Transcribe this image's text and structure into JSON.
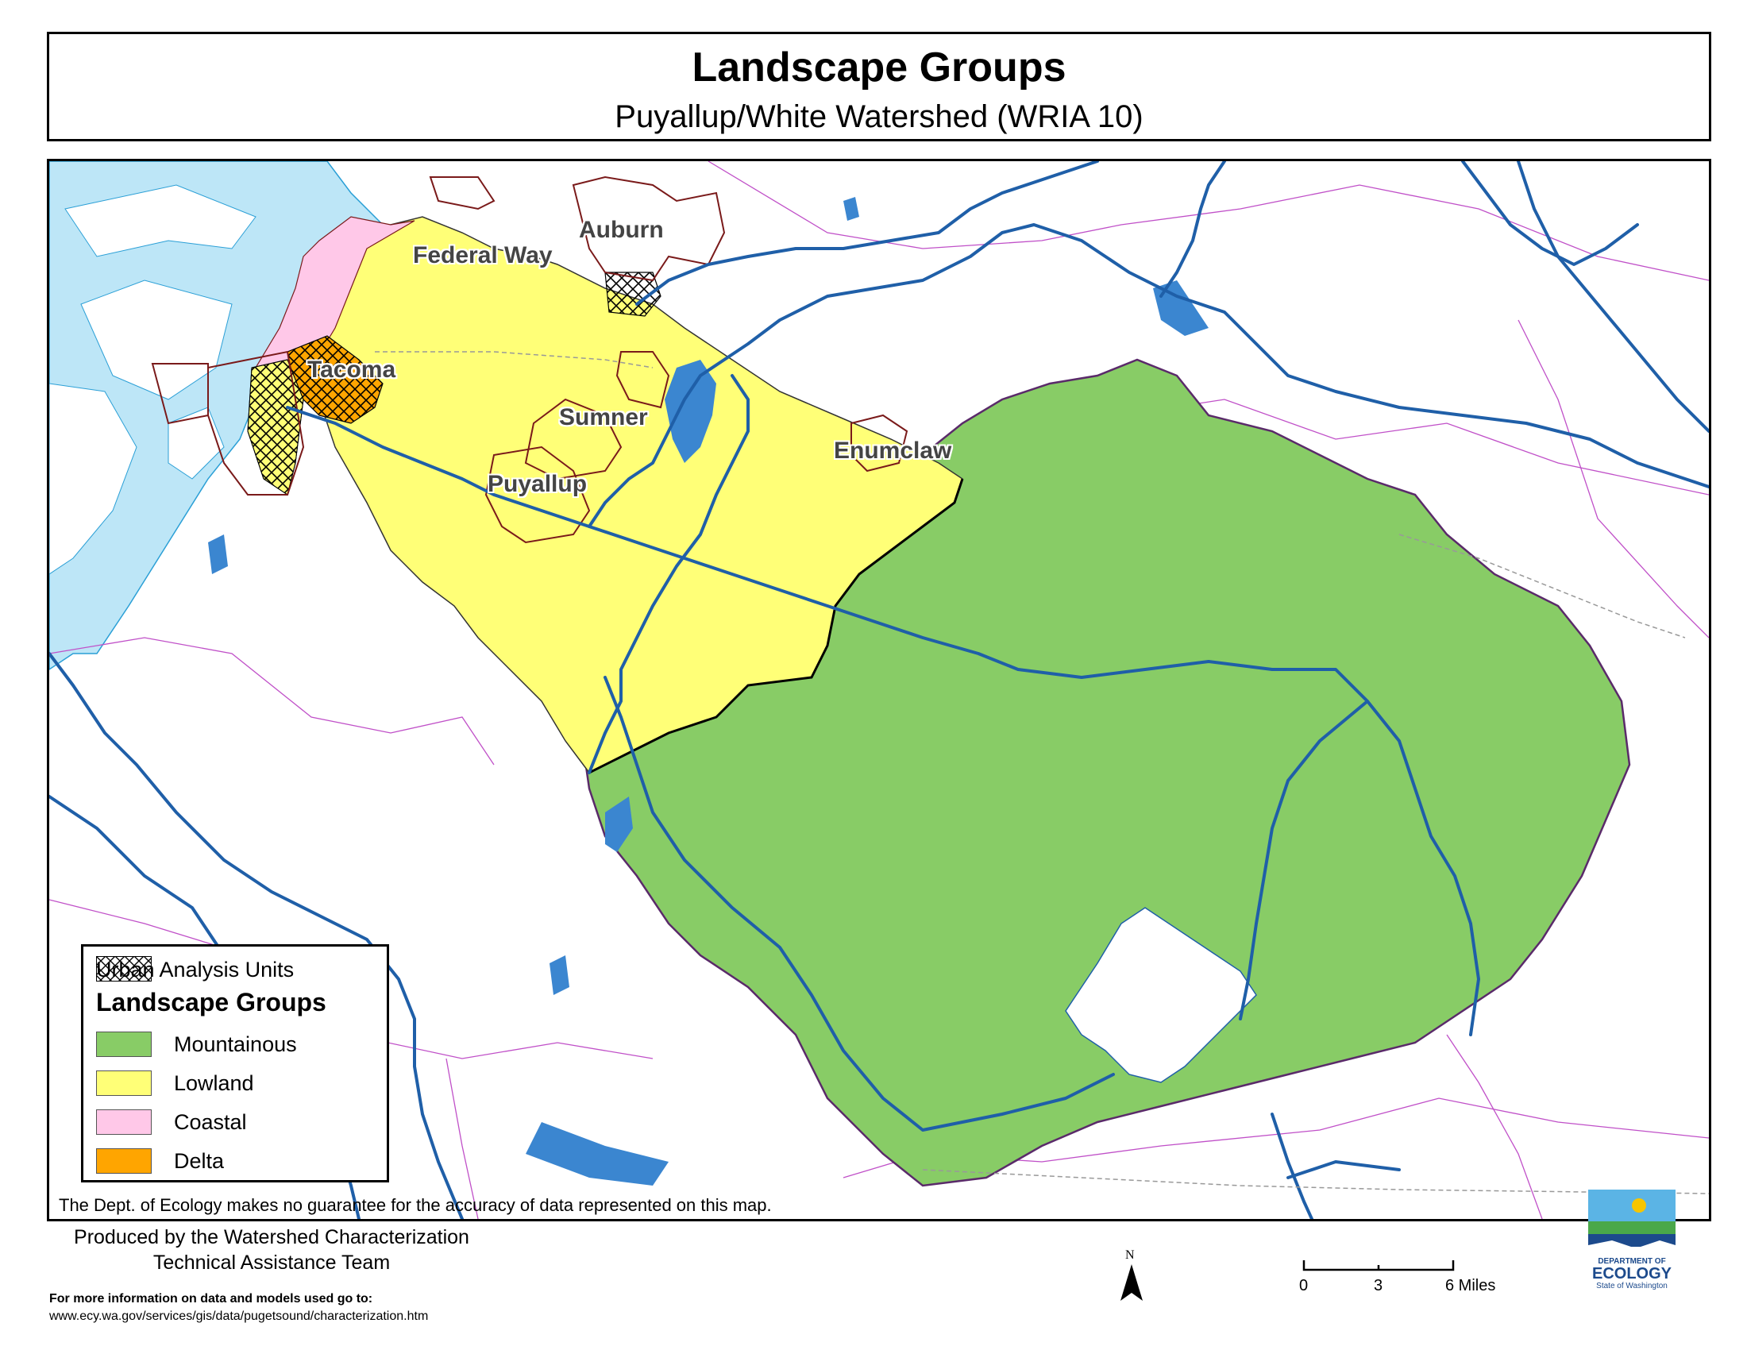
{
  "title": {
    "main": "Landscape Groups",
    "sub": "Puyallup/White Watershed (WRIA 10)"
  },
  "cities": [
    {
      "name": "Auburn"
    },
    {
      "name": "Federal Way"
    },
    {
      "name": "Tacoma"
    },
    {
      "name": "Sumner"
    },
    {
      "name": "Enumclaw"
    },
    {
      "name": "Puyallup"
    }
  ],
  "legend": {
    "urban_label": "Urban Analysis Units",
    "heading": "Landscape Groups",
    "items": [
      {
        "label": "Mountainous",
        "color": "#88cc66"
      },
      {
        "label": "Lowland",
        "color": "#ffff77"
      },
      {
        "label": "Coastal",
        "color": "#ffc8e8"
      },
      {
        "label": "Delta",
        "color": "#ffa500"
      }
    ]
  },
  "colors": {
    "water": "#bde6f7",
    "river": "#1f5fa8",
    "county_line": "#c050c8",
    "city_boundary": "#7a1a1a"
  },
  "disclaimer": "The Dept. of Ecology makes no guarantee for the accuracy of data represented on this map.",
  "footer": {
    "produced_line1": "Produced by the Watershed Characterization",
    "produced_line2": "Technical Assistance Team",
    "more_line1": "For more information on data and models used go to:",
    "more_line2": "www.ecy.wa.gov/services/gis/data/pugetsound/characterization.htm"
  },
  "north_label": "N",
  "scale": {
    "ticks": [
      "0",
      "3",
      "6 Miles"
    ]
  },
  "logo": {
    "line1": "DEPARTMENT OF",
    "line2": "ECOLOGY",
    "line3": "State of Washington"
  }
}
